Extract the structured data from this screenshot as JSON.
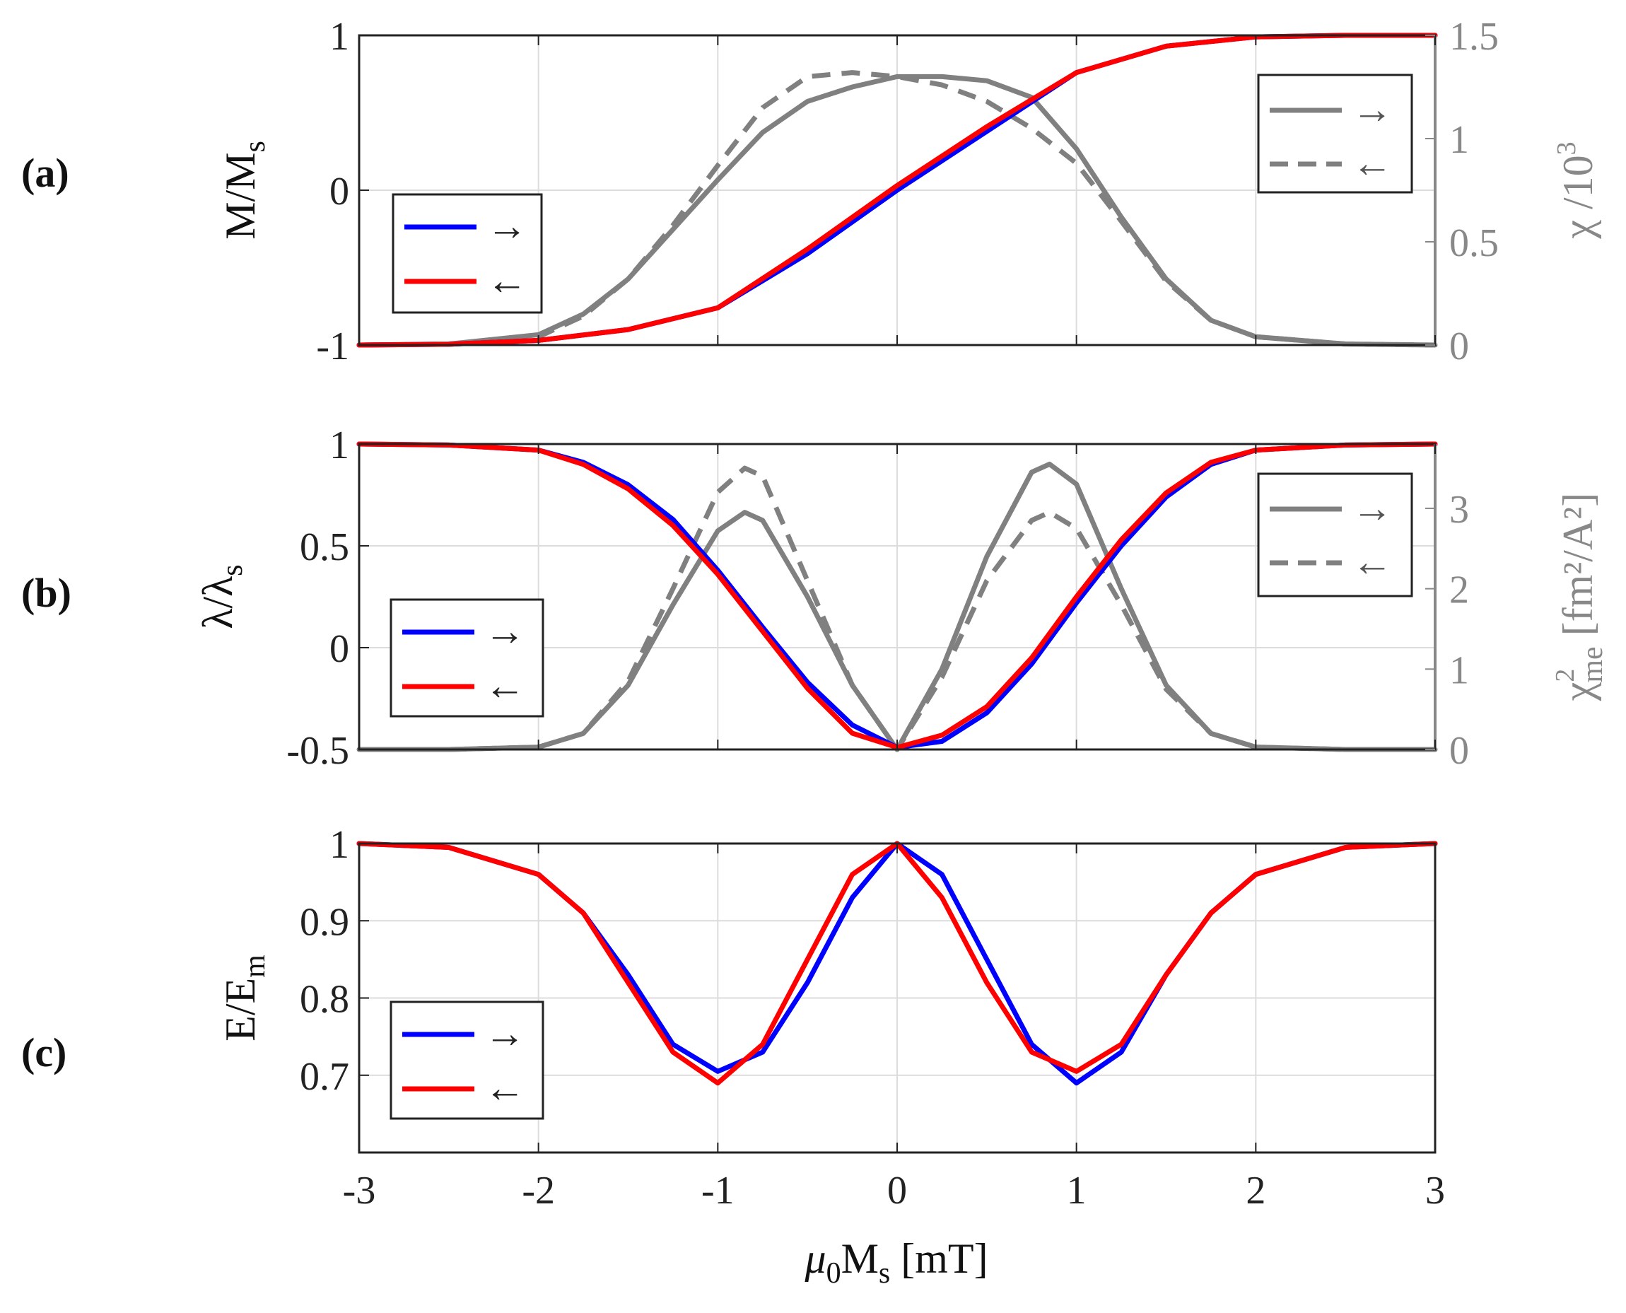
{
  "chart_data": [
    {
      "panel": "(a)",
      "type": "line",
      "xlim": [
        -3,
        3
      ],
      "ylim": [
        -1,
        1
      ],
      "y2lim": [
        0,
        1.5
      ],
      "ylabel": {
        "main": "M/M",
        "sub": "s"
      },
      "y2label": {
        "main": "χ /10",
        "sup": "3"
      },
      "yticks": [
        "-1",
        "0",
        "1"
      ],
      "y2ticks": [
        "0",
        "0.5",
        "1",
        "1.5"
      ],
      "grid": true,
      "legend_left": {
        "position": "lower-left",
        "entries": [
          "→",
          "←"
        ]
      },
      "legend_right": {
        "position": "upper-right",
        "entries": [
          "→",
          "←"
        ]
      },
      "series": [
        {
          "name": "M/Ms →",
          "axis": "left",
          "color": "#0000ff",
          "style": "solid",
          "x": [
            -3,
            -2.5,
            -2,
            -1.5,
            -1,
            -0.5,
            0,
            0.5,
            1,
            1.5,
            2,
            2.5,
            3
          ],
          "y": [
            -1,
            -0.995,
            -0.97,
            -0.9,
            -0.76,
            -0.41,
            0.0,
            0.38,
            0.76,
            0.93,
            0.99,
            1.0,
            1.0
          ]
        },
        {
          "name": "M/Ms ←",
          "axis": "left",
          "color": "#ff0000",
          "style": "solid",
          "x": [
            -3,
            -2.5,
            -2,
            -1.5,
            -1,
            -0.5,
            0,
            0.5,
            1,
            1.5,
            2,
            2.5,
            3
          ],
          "y": [
            -1,
            -0.995,
            -0.97,
            -0.9,
            -0.76,
            -0.38,
            0.03,
            0.41,
            0.76,
            0.93,
            0.99,
            1.0,
            1.0
          ]
        },
        {
          "name": "χ →",
          "axis": "right",
          "color": "#808080",
          "style": "solid",
          "x": [
            -3,
            -2.5,
            -2,
            -1.75,
            -1.5,
            -1.25,
            -1,
            -0.75,
            -0.5,
            -0.25,
            0,
            0.25,
            0.5,
            0.75,
            1,
            1.25,
            1.5,
            1.75,
            2,
            2.5,
            3
          ],
          "y": [
            0.0,
            0.005,
            0.05,
            0.15,
            0.32,
            0.56,
            0.8,
            1.03,
            1.18,
            1.25,
            1.3,
            1.3,
            1.28,
            1.2,
            0.95,
            0.62,
            0.32,
            0.12,
            0.04,
            0.005,
            0.0
          ]
        },
        {
          "name": "χ ←",
          "axis": "right",
          "color": "#808080",
          "style": "dashed",
          "x": [
            -3,
            -2.5,
            -2,
            -1.75,
            -1.5,
            -1.25,
            -1,
            -0.75,
            -0.5,
            -0.25,
            0,
            0.25,
            0.5,
            0.75,
            1,
            1.25,
            1.5,
            1.75,
            2,
            2.5,
            3
          ],
          "y": [
            0.0,
            0.005,
            0.04,
            0.14,
            0.32,
            0.58,
            0.87,
            1.15,
            1.3,
            1.32,
            1.3,
            1.26,
            1.18,
            1.05,
            0.88,
            0.6,
            0.31,
            0.12,
            0.04,
            0.005,
            0.0
          ]
        }
      ]
    },
    {
      "panel": "(b)",
      "type": "line",
      "xlim": [
        -3,
        3
      ],
      "ylim": [
        -0.5,
        1
      ],
      "y2lim": [
        0,
        3.8
      ],
      "ylabel": {
        "main": "λ/λ",
        "sub": "s"
      },
      "y2label": {
        "main": "χ",
        "sup": "2",
        "sub": "me",
        "rest": " [fm²/A²]"
      },
      "yticks": [
        "-0.5",
        "0",
        "0.5",
        "1"
      ],
      "y2ticks": [
        "0",
        "1",
        "2",
        "3"
      ],
      "grid": true,
      "legend_left": {
        "position": "lower-left",
        "entries": [
          "→",
          "←"
        ]
      },
      "legend_right": {
        "position": "upper-right",
        "entries": [
          "→",
          "←"
        ]
      },
      "series": [
        {
          "name": "λ/λs →",
          "axis": "left",
          "color": "#0000ff",
          "style": "solid",
          "x": [
            -3,
            -2.5,
            -2,
            -1.75,
            -1.5,
            -1.25,
            -1,
            -0.75,
            -0.5,
            -0.25,
            0,
            0.25,
            0.5,
            0.75,
            1,
            1.25,
            1.5,
            1.75,
            2,
            2.5,
            3
          ],
          "y": [
            1.0,
            0.995,
            0.97,
            0.91,
            0.8,
            0.63,
            0.38,
            0.1,
            -0.17,
            -0.38,
            -0.49,
            -0.46,
            -0.32,
            -0.08,
            0.22,
            0.5,
            0.74,
            0.9,
            0.97,
            0.995,
            1.0
          ]
        },
        {
          "name": "λ/λs ←",
          "axis": "left",
          "color": "#ff0000",
          "style": "solid",
          "x": [
            -3,
            -2.5,
            -2,
            -1.75,
            -1.5,
            -1.25,
            -1,
            -0.75,
            -0.5,
            -0.25,
            0,
            0.25,
            0.5,
            0.75,
            1,
            1.25,
            1.5,
            1.75,
            2,
            2.5,
            3
          ],
          "y": [
            1.0,
            0.995,
            0.97,
            0.9,
            0.78,
            0.6,
            0.36,
            0.08,
            -0.2,
            -0.42,
            -0.49,
            -0.43,
            -0.29,
            -0.05,
            0.25,
            0.53,
            0.76,
            0.91,
            0.97,
            0.995,
            1.0
          ]
        },
        {
          "name": "χme² →",
          "axis": "right",
          "color": "#808080",
          "style": "solid",
          "x": [
            -3,
            -2.5,
            -2,
            -1.75,
            -1.5,
            -1.25,
            -1,
            -0.85,
            -0.75,
            -0.5,
            -0.25,
            0,
            0.25,
            0.5,
            0.75,
            0.85,
            1,
            1.25,
            1.5,
            1.75,
            2,
            2.5,
            3
          ],
          "y": [
            0.0,
            0.0,
            0.03,
            0.2,
            0.8,
            1.8,
            2.72,
            2.95,
            2.85,
            1.9,
            0.8,
            0.0,
            1.0,
            2.4,
            3.45,
            3.55,
            3.3,
            2.0,
            0.8,
            0.2,
            0.03,
            0.0,
            0.0
          ]
        },
        {
          "name": "χme² ←",
          "axis": "right",
          "color": "#808080",
          "style": "dashed",
          "x": [
            -3,
            -2.5,
            -2,
            -1.75,
            -1.5,
            -1.25,
            -1,
            -0.85,
            -0.75,
            -0.5,
            -0.25,
            0,
            0.25,
            0.5,
            0.75,
            0.85,
            1,
            1.25,
            1.5,
            1.75,
            2,
            2.5,
            3
          ],
          "y": [
            0.0,
            0.0,
            0.03,
            0.2,
            0.85,
            2.0,
            3.2,
            3.5,
            3.4,
            2.1,
            0.8,
            0.0,
            0.9,
            2.1,
            2.85,
            2.95,
            2.75,
            1.8,
            0.75,
            0.2,
            0.03,
            0.0,
            0.0
          ]
        }
      ]
    },
    {
      "panel": "(c)",
      "type": "line",
      "xlim": [
        -3,
        3
      ],
      "ylim": [
        0.6,
        1.0
      ],
      "ylabel": {
        "main": "E/E",
        "sub": "m"
      },
      "yticks": [
        "0.7",
        "0.8",
        "0.9",
        "1"
      ],
      "xticks": [
        "-3",
        "-2",
        "-1",
        "0",
        "1",
        "2",
        "3"
      ],
      "xlabel": {
        "main": "μ",
        "sub1": "0",
        "mid": "M",
        "sub2": "s",
        "rest": " [mT]"
      },
      "grid": true,
      "legend_left": {
        "position": "lower-left",
        "entries": [
          "→",
          "←"
        ]
      },
      "series": [
        {
          "name": "E/Em →",
          "axis": "left",
          "color": "#0000ff",
          "style": "solid",
          "x": [
            -3,
            -2.5,
            -2,
            -1.75,
            -1.5,
            -1.25,
            -1,
            -0.75,
            -0.5,
            -0.25,
            0,
            0.25,
            0.5,
            0.75,
            1,
            1.25,
            1.5,
            1.75,
            2,
            2.5,
            3
          ],
          "y": [
            1.0,
            0.995,
            0.96,
            0.91,
            0.83,
            0.74,
            0.705,
            0.73,
            0.82,
            0.93,
            1.0,
            0.96,
            0.85,
            0.74,
            0.69,
            0.73,
            0.83,
            0.91,
            0.96,
            0.995,
            1.0
          ]
        },
        {
          "name": "E/Em ←",
          "axis": "left",
          "color": "#ff0000",
          "style": "solid",
          "x": [
            -3,
            -2.5,
            -2,
            -1.75,
            -1.5,
            -1.25,
            -1,
            -0.75,
            -0.5,
            -0.25,
            0,
            0.25,
            0.5,
            0.75,
            1,
            1.25,
            1.5,
            1.75,
            2,
            2.5,
            3
          ],
          "y": [
            1.0,
            0.995,
            0.96,
            0.91,
            0.82,
            0.73,
            0.69,
            0.74,
            0.85,
            0.96,
            1.0,
            0.93,
            0.82,
            0.73,
            0.705,
            0.74,
            0.83,
            0.91,
            0.96,
            0.995,
            1.0
          ]
        }
      ]
    }
  ]
}
